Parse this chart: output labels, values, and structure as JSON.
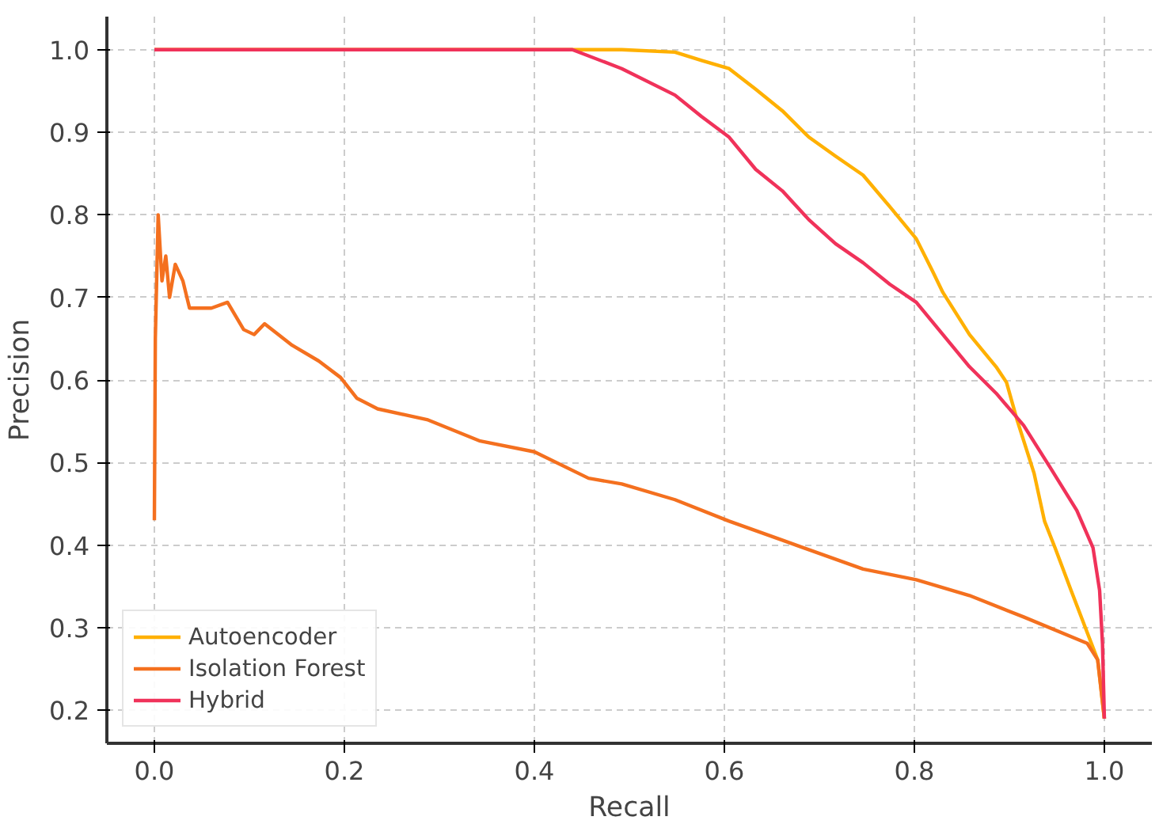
{
  "chart_data": {
    "type": "line",
    "xlabel": "Recall",
    "ylabel": "Precision",
    "xlim": [
      -0.05,
      1.05
    ],
    "ylim": [
      0.16,
      1.04
    ],
    "xticks": [
      {
        "value": 0,
        "label": "0.0"
      },
      {
        "value": 0.2,
        "label": "0.2"
      },
      {
        "value": 0.4,
        "label": "0.4"
      },
      {
        "value": 0.6,
        "label": "0.6"
      },
      {
        "value": 0.8,
        "label": "0.8"
      },
      {
        "value": 1,
        "label": "1.0"
      }
    ],
    "yticks": [
      {
        "value": 0.2,
        "label": "0.2"
      },
      {
        "value": 0.3,
        "label": "0.3"
      },
      {
        "value": 0.4,
        "label": "0.4"
      },
      {
        "value": 0.5,
        "label": "0.5"
      },
      {
        "value": 0.6,
        "label": "0.6"
      },
      {
        "value": 0.7,
        "label": "0.7"
      },
      {
        "value": 0.8,
        "label": "0.8"
      },
      {
        "value": 0.9,
        "label": "0.9"
      },
      {
        "value": 1,
        "label": "1.0"
      }
    ],
    "grid": true,
    "legend": "bottom left",
    "line_style": "solid",
    "marker": "none",
    "series": [
      {
        "name": "Autoencoder",
        "color": "#ffb000",
        "x": [
          0,
          0.492,
          0.548,
          0.576,
          0.605,
          0.633,
          0.661,
          0.689,
          0.717,
          0.746,
          0.774,
          0.802,
          0.819,
          0.83,
          0.858,
          0.886,
          0.897,
          0.908,
          0.926,
          0.937,
          0.948,
          0.965,
          0.982,
          0.993,
          1.0
        ],
        "values": [
          1.0,
          1.0,
          0.997,
          0.987,
          0.977,
          0.952,
          0.926,
          0.894,
          0.871,
          0.848,
          0.81,
          0.771,
          0.732,
          0.706,
          0.655,
          0.616,
          0.597,
          0.552,
          0.487,
          0.429,
          0.397,
          0.345,
          0.294,
          0.261,
          0.19
        ]
      },
      {
        "name": "Isolation Forest",
        "color": "#f4701f",
        "x": [
          0,
          0.001,
          0.004,
          0.008,
          0.012,
          0.016,
          0.022,
          0.03,
          0.037,
          0.06,
          0.077,
          0.094,
          0.105,
          0.116,
          0.145,
          0.173,
          0.196,
          0.213,
          0.235,
          0.287,
          0.343,
          0.4,
          0.457,
          0.492,
          0.548,
          0.605,
          0.661,
          0.746,
          0.802,
          0.858,
          0.915,
          0.982,
          0.993,
          1.0
        ],
        "values": [
          0.43,
          0.65,
          0.8,
          0.72,
          0.75,
          0.7,
          0.74,
          0.72,
          0.687,
          0.687,
          0.694,
          0.661,
          0.655,
          0.668,
          0.642,
          0.623,
          0.603,
          0.578,
          0.565,
          0.552,
          0.526,
          0.513,
          0.481,
          0.474,
          0.455,
          0.429,
          0.406,
          0.371,
          0.358,
          0.339,
          0.313,
          0.281,
          0.261,
          0.19
        ]
      },
      {
        "name": "Hybrid",
        "color": "#f0325a",
        "x": [
          0,
          0.44,
          0.492,
          0.548,
          0.576,
          0.605,
          0.633,
          0.661,
          0.689,
          0.717,
          0.746,
          0.774,
          0.802,
          0.83,
          0.858,
          0.886,
          0.915,
          0.943,
          0.971,
          0.988,
          0.995,
          0.998,
          1.0
        ],
        "values": [
          1.0,
          1.0,
          0.977,
          0.945,
          0.919,
          0.894,
          0.855,
          0.829,
          0.794,
          0.765,
          0.742,
          0.716,
          0.694,
          0.655,
          0.616,
          0.584,
          0.545,
          0.494,
          0.442,
          0.397,
          0.345,
          0.281,
          0.19
        ]
      }
    ]
  }
}
